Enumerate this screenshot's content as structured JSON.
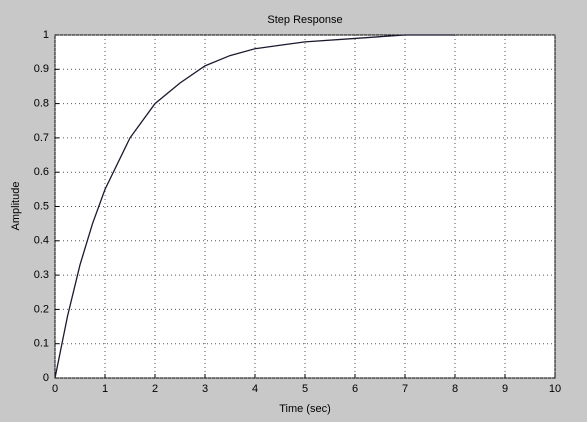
{
  "chart_data": {
    "type": "line",
    "title": "Step Response",
    "xlabel": "Time (sec)",
    "ylabel": "Amplitude",
    "x": [
      0,
      0.25,
      0.5,
      0.75,
      1,
      1.5,
      2,
      2.5,
      3,
      3.5,
      4,
      4.5,
      5,
      6,
      7,
      8
    ],
    "series": [
      {
        "color": "#1a1a2e",
        "values": [
          0,
          0.18,
          0.33,
          0.45,
          0.55,
          0.7,
          0.8,
          0.86,
          0.91,
          0.94,
          0.96,
          0.97,
          0.98,
          0.99,
          1,
          1
        ]
      }
    ],
    "xlim": [
      0,
      10
    ],
    "xticks": [
      0,
      1,
      2,
      3,
      4,
      5,
      6,
      7,
      8,
      9,
      10
    ],
    "ylim": [
      0,
      1
    ],
    "yticks": [
      0,
      0.1,
      0.2,
      0.3,
      0.4,
      0.5,
      0.6,
      0.7,
      0.8,
      0.9,
      1
    ],
    "grid": true
  }
}
